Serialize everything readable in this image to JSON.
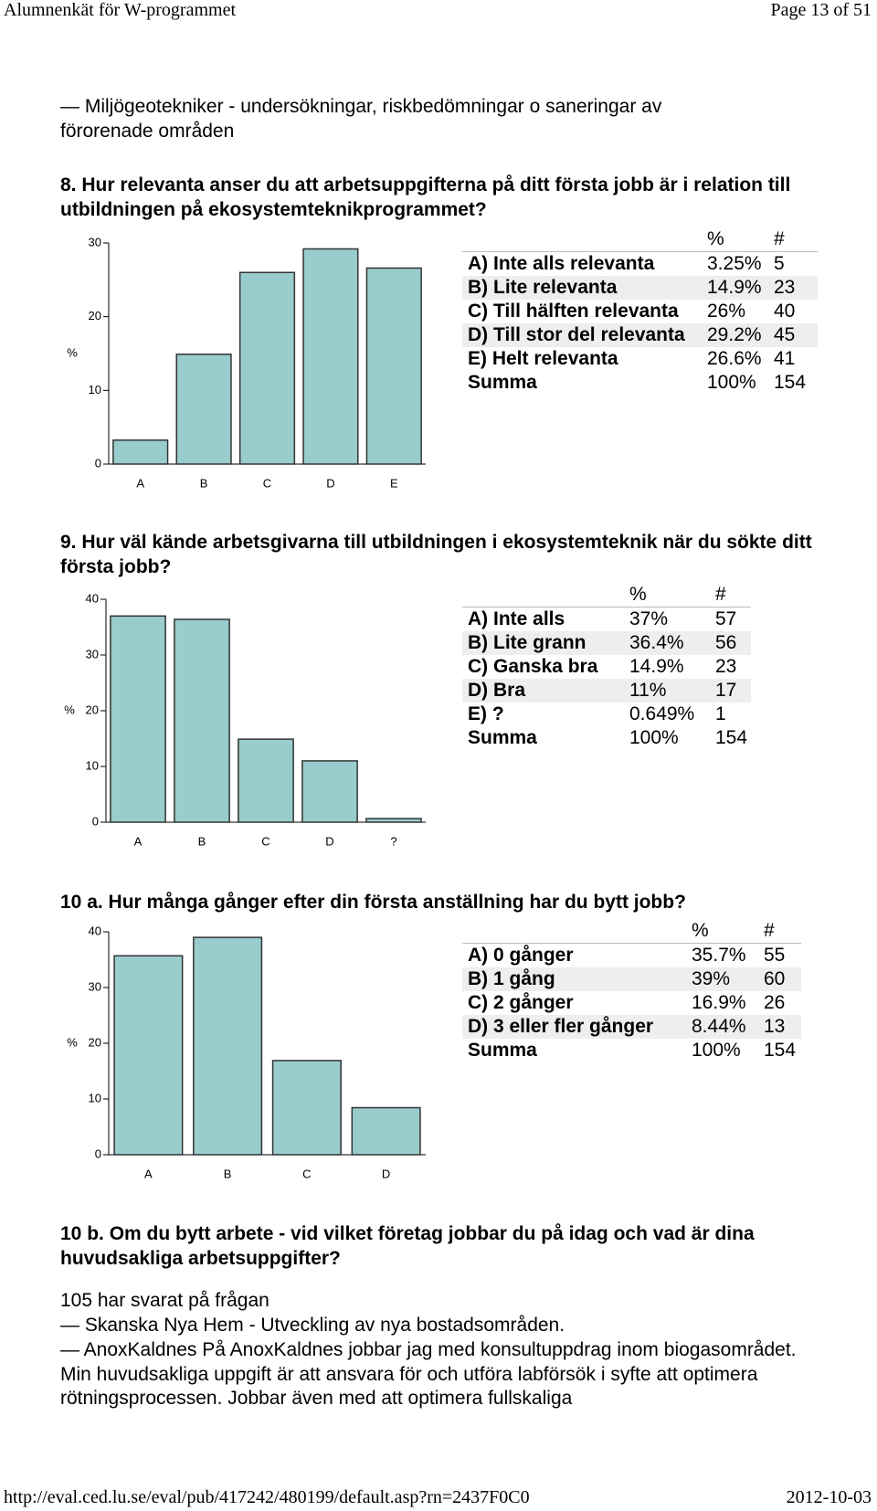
{
  "header": {
    "title": "Alumnenkät för W-programmet",
    "page": "Page 13 of 51"
  },
  "intro": "— Miljögeotekniker - undersökningar, riskbedömningar o saneringar av förorenade områden",
  "questions": [
    {
      "title": "8. Hur relevanta anser du att arbetsuppgifterna på ditt första jobb är i relation till utbildningen på ekosystemteknikprogrammet?",
      "table": {
        "columns": [
          "%",
          "#"
        ],
        "rows": [
          [
            "A) Inte alls relevanta",
            "3.25%",
            "5"
          ],
          [
            "B) Lite relevanta",
            "14.9%",
            "23"
          ],
          [
            "C) Till hälften relevanta",
            "26%",
            "40"
          ],
          [
            "D) Till stor del relevanta",
            "29.2%",
            "45"
          ],
          [
            "E) Helt relevanta",
            "26.6%",
            "41"
          ]
        ],
        "total": [
          "Summa",
          "100%",
          "154"
        ]
      }
    },
    {
      "title": "9. Hur väl kände arbetsgivarna till utbildningen i ekosystemteknik när du sökte ditt första jobb?",
      "table": {
        "columns": [
          "%",
          "#"
        ],
        "rows": [
          [
            "A) Inte alls",
            "37%",
            "57"
          ],
          [
            "B) Lite grann",
            "36.4%",
            "56"
          ],
          [
            "C) Ganska bra",
            "14.9%",
            "23"
          ],
          [
            "D) Bra",
            "11%",
            "17"
          ],
          [
            "E) ?",
            "0.649%",
            "1"
          ]
        ],
        "total": [
          "Summa",
          "100%",
          "154"
        ]
      }
    },
    {
      "title": "10 a. Hur många gånger efter din första anställning har du bytt jobb?",
      "table": {
        "columns": [
          "%",
          "#"
        ],
        "rows": [
          [
            "A) 0 gånger",
            "35.7%",
            "55"
          ],
          [
            "B) 1 gång",
            "39%",
            "60"
          ],
          [
            "C) 2 gånger",
            "16.9%",
            "26"
          ],
          [
            "D) 3 eller fler gånger",
            "8.44%",
            "13"
          ]
        ],
        "total": [
          "Summa",
          "100%",
          "154"
        ]
      }
    },
    {
      "title": "10 b. Om du bytt arbete - vid vilket företag jobbar du på idag och vad är dina huvudsakliga arbetsuppgifter?",
      "answered": "105 har svarat på frågan",
      "answers": [
        "— Skanska Nya Hem - Utveckling av nya bostadsområden.",
        "— AnoxKaldnes På AnoxKaldnes jobbar jag med konsultuppdrag inom biogasområdet. Min huvudsakliga uppgift är att ansvara för och utföra labförsök i syfte att optimera rötningsprocessen. Jobbar även med att optimera fullskaliga"
      ]
    }
  ],
  "chart_data": [
    {
      "type": "bar",
      "ylabel": "%",
      "categories": [
        "A",
        "B",
        "C",
        "D",
        "E"
      ],
      "values": [
        3.25,
        14.9,
        26,
        29.2,
        26.6
      ],
      "color": "#99cccc",
      "ylim": [
        0,
        30
      ],
      "yticks": [
        0,
        10,
        20,
        30
      ]
    },
    {
      "type": "bar",
      "ylabel": "%",
      "categories": [
        "A",
        "B",
        "C",
        "D",
        "?"
      ],
      "values": [
        37,
        36.4,
        14.9,
        11,
        0.649
      ],
      "color": "#99cccc",
      "ylim": [
        0,
        40
      ],
      "yticks": [
        0,
        10,
        20,
        30,
        40
      ]
    },
    {
      "type": "bar",
      "ylabel": "%",
      "categories": [
        "A",
        "B",
        "C",
        "D"
      ],
      "values": [
        35.7,
        39,
        16.9,
        8.44
      ],
      "color": "#99cccc",
      "ylim": [
        0,
        40
      ],
      "yticks": [
        0,
        10,
        20,
        30,
        40
      ]
    }
  ],
  "footer": {
    "url": "http://eval.ced.lu.se/eval/pub/417242/480199/default.asp?rn=2437F0C0",
    "date": "2012-10-03"
  }
}
